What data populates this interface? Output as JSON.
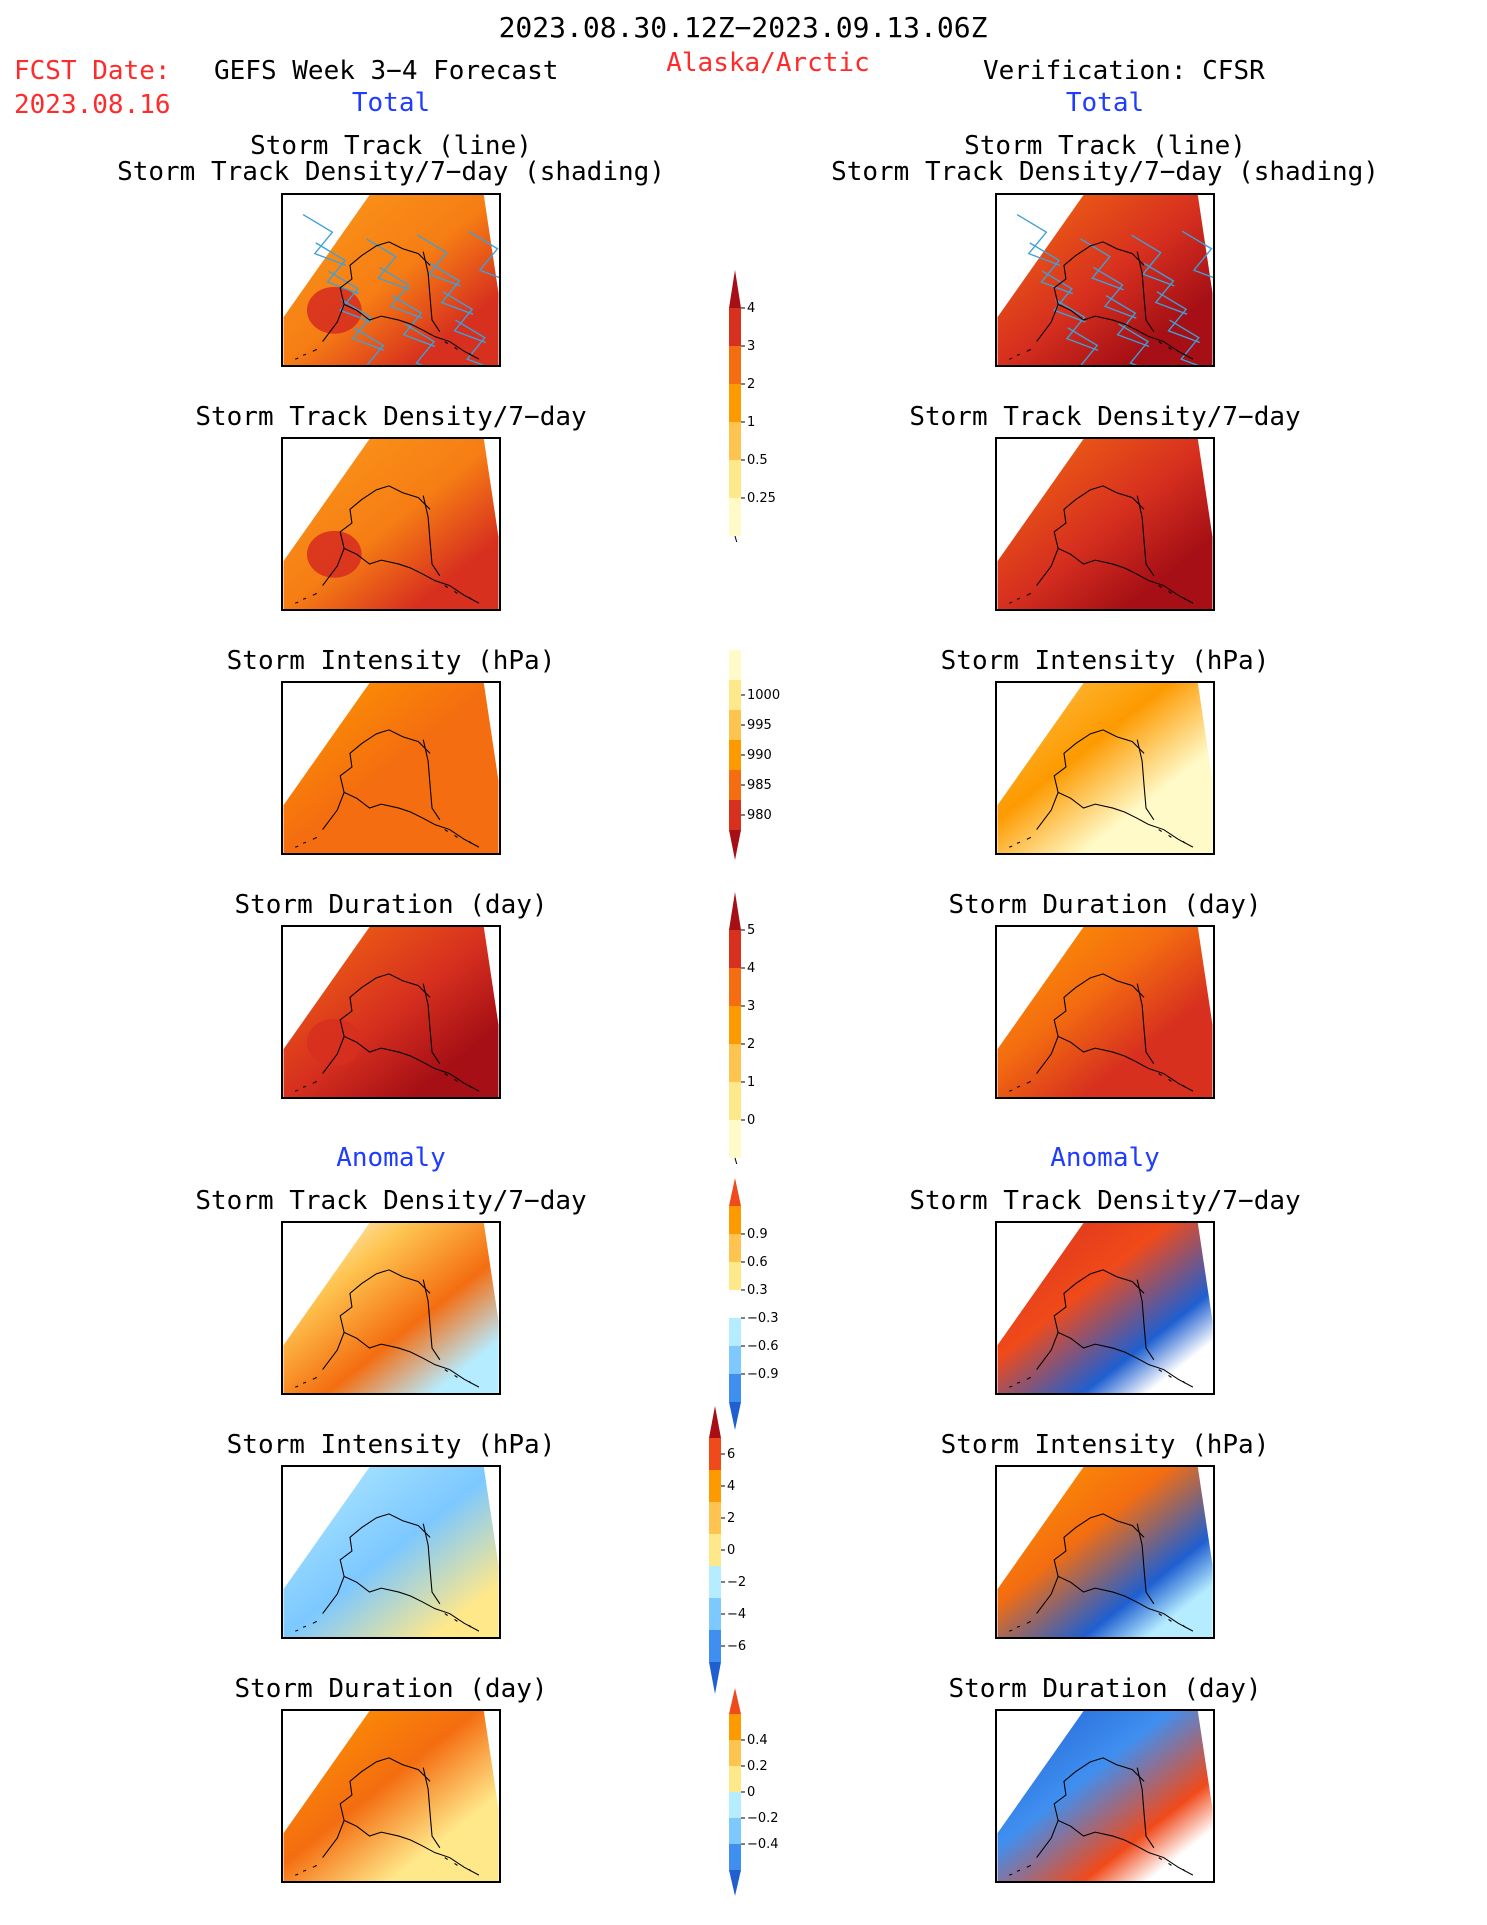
{
  "header": {
    "date_range": "2023.08.30.12Z−2023.09.13.06Z",
    "fcst_label": "FCST Date:",
    "fcst_date": "2023.08.16",
    "model": "GEFS Week 3−4 Forecast",
    "region": "Alaska/Arctic",
    "verification": "Verification: CFSR"
  },
  "sections": {
    "total": "Total",
    "anomaly": "Anomaly"
  },
  "panel_titles": {
    "track_line": "Storm Track (line)",
    "track_shading": "Storm Track Density/7−day (shading)",
    "density": "Storm Track Density/7−day",
    "intensity": "Storm Intensity (hPa)",
    "duration": "Storm Duration (day)"
  },
  "colorbars": {
    "density": {
      "labels": [
        "4",
        "3",
        "2",
        "1",
        "0.5",
        "0.25"
      ],
      "colors": [
        "#a50f15",
        "#d7301f",
        "#f46d10",
        "#fd9a00",
        "#fec44f",
        "#ffe88a",
        "#fffac8"
      ]
    },
    "intensity": {
      "labels": [
        "1000",
        "995",
        "990",
        "985",
        "980"
      ],
      "colors": [
        "#fffac8",
        "#ffe88a",
        "#fec44f",
        "#fd9a00",
        "#f46d10",
        "#d7301f",
        "#a50f15"
      ]
    },
    "duration": {
      "labels": [
        "5",
        "4",
        "3",
        "2",
        "1",
        "0"
      ],
      "colors": [
        "#a50f15",
        "#d7301f",
        "#f46d10",
        "#fd9a00",
        "#fec44f",
        "#ffe88a",
        "#fffac8"
      ]
    },
    "density_anom": {
      "labels": [
        "0.9",
        "0.6",
        "0.3",
        "−0.3",
        "−0.6",
        "−0.9"
      ],
      "colors": [
        "#f04a1a",
        "#fd9a00",
        "#fec44f",
        "#ffe88a",
        "#ffffff",
        "#b6ecff",
        "#7cc8ff",
        "#3f8ff0",
        "#1f5fd0"
      ]
    },
    "intensity_anom": {
      "labels": [
        "6",
        "4",
        "2",
        "0",
        "−2",
        "−4",
        "−6"
      ],
      "colors": [
        "#a50f15",
        "#f04a1a",
        "#fd9a00",
        "#fec44f",
        "#ffe88a",
        "#b6ecff",
        "#7cc8ff",
        "#3f8ff0",
        "#1f5fd0"
      ]
    },
    "duration_anom": {
      "labels": [
        "0.4",
        "0.2",
        "0",
        "−0.2",
        "−0.4"
      ],
      "colors": [
        "#f04a1a",
        "#fd9a00",
        "#fec44f",
        "#ffe88a",
        "#b6ecff",
        "#7cc8ff",
        "#3f8ff0",
        "#1f5fd0"
      ]
    }
  }
}
